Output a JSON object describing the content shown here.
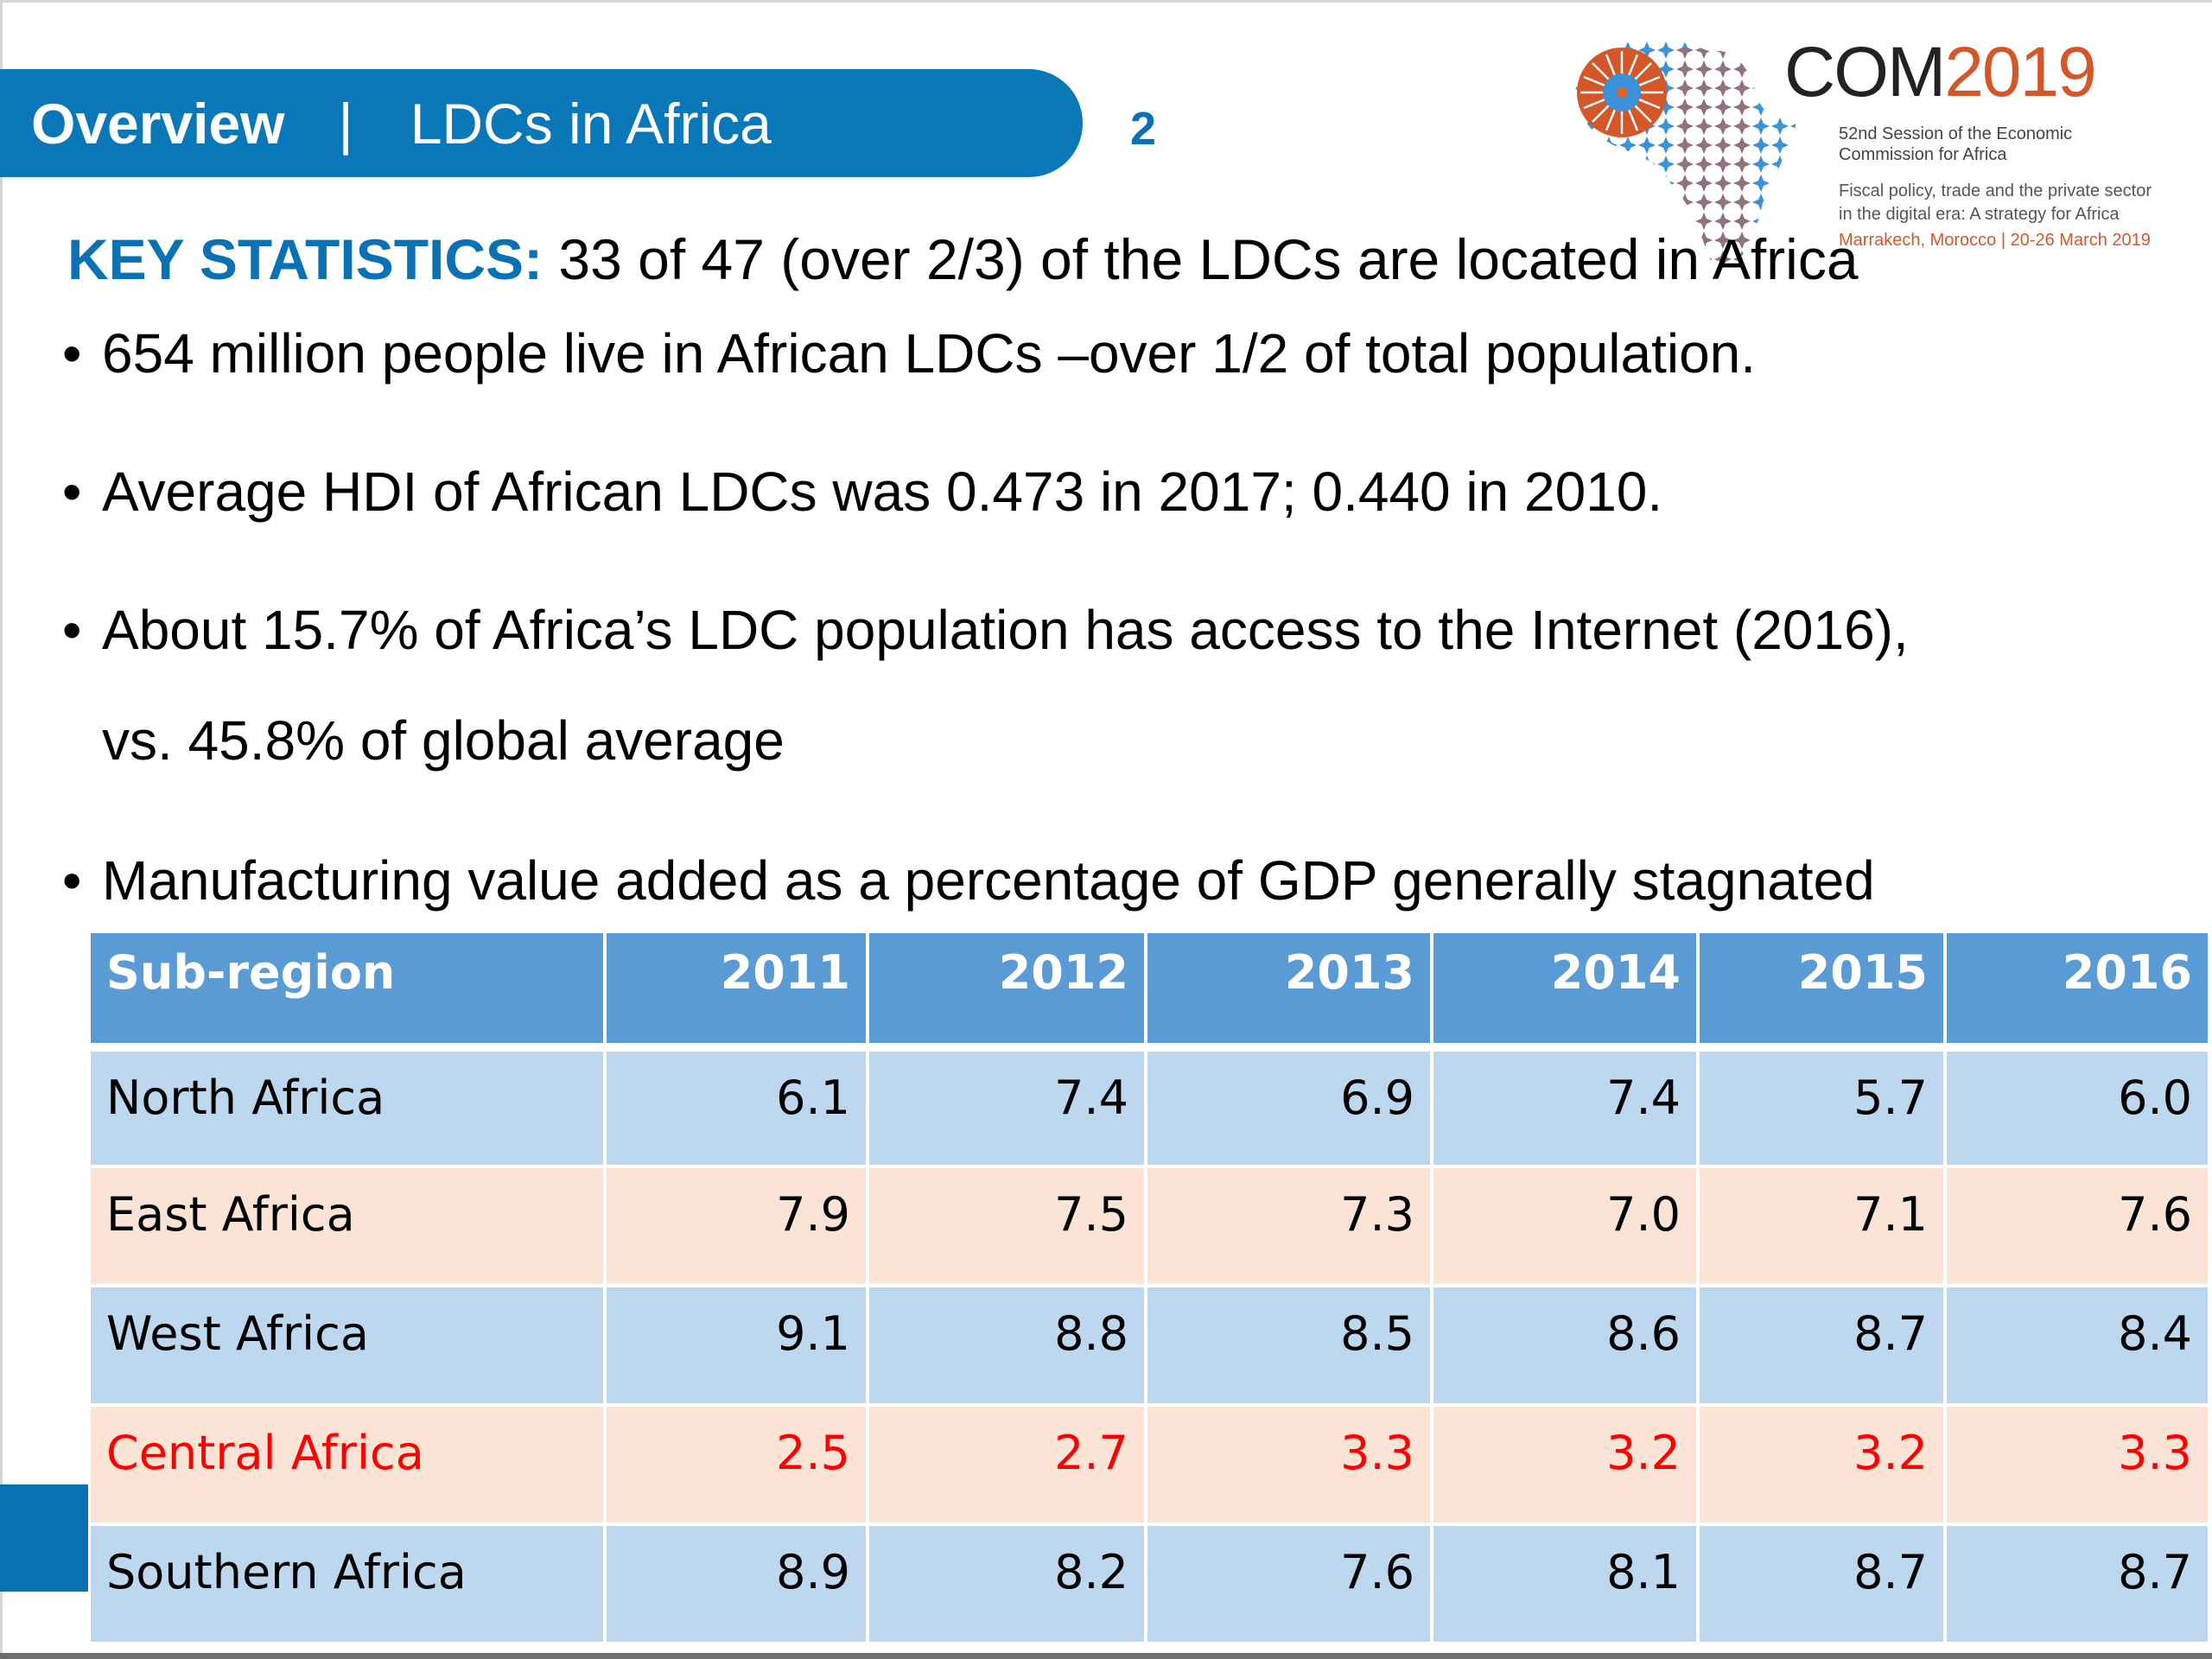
{
  "header": {
    "section": "Overview",
    "separator": "|",
    "topic": "LDCs in Africa",
    "page_number": "2"
  },
  "logo": {
    "icon": "africa-map-mosaic-icon",
    "title_prefix": "COM",
    "title_year": "2019",
    "session_line1": "52nd Session of the Economic",
    "session_line2": "Commission for Africa",
    "theme_line1": "Fiscal policy, trade and the private sector",
    "theme_line2": "in the digital era: A strategy for Africa",
    "location_dates": "Marrakech, Morocco | 20-26 March 2019",
    "colors": {
      "orange": "#d4572a",
      "blue": "#3c92d8",
      "light_orange": "#e9914d"
    }
  },
  "key_statistics": {
    "label": "KEY STATISTICS:",
    "text": " 33 of 47 (over 2/3) of the LDCs are located in Africa"
  },
  "bullets": [
    {
      "text": "654 million people live in African LDCs –over 1/2 of total population."
    },
    {
      "text": "Average HDI of African LDCs was 0.473 in 2017; 0.440 in 2010."
    },
    {
      "text": "About 15.7% of Africa’s LDC population has access to the Internet (2016),",
      "continuation": "vs. 45.8% of global average"
    },
    {
      "text": "Manufacturing value added as a percentage of GDP generally stagnated"
    }
  ],
  "table": {
    "columns": [
      "Sub-region",
      "2011",
      "2012",
      "2013",
      "2014",
      "2015",
      "2016"
    ],
    "rows": [
      {
        "region": "North Africa",
        "values": [
          "6.1",
          "7.4",
          "6.9",
          "7.4",
          "5.7",
          "6.0"
        ],
        "highlight": false
      },
      {
        "region": "East Africa",
        "values": [
          "7.9",
          "7.5",
          "7.3",
          "7.0",
          "7.1",
          "7.6"
        ],
        "highlight": false
      },
      {
        "region": "West Africa",
        "values": [
          "9.1",
          "8.8",
          "8.5",
          "8.6",
          "8.7",
          "8.4"
        ],
        "highlight": false
      },
      {
        "region": "Central Africa",
        "values": [
          "2.5",
          "2.7",
          "3.3",
          "3.2",
          "3.2",
          "3.3"
        ],
        "highlight": true
      },
      {
        "region": "Southern Africa",
        "values": [
          "8.9",
          "8.2",
          "7.6",
          "8.1",
          "8.7",
          "8.7"
        ],
        "highlight": false
      }
    ]
  },
  "colors": {
    "brand_blue": "#0a78b8",
    "header_blue": "#5b9bd5",
    "row_blue": "#bdd7ee",
    "row_peach": "#fbe4d5",
    "highlight_red": "#ff0000"
  }
}
